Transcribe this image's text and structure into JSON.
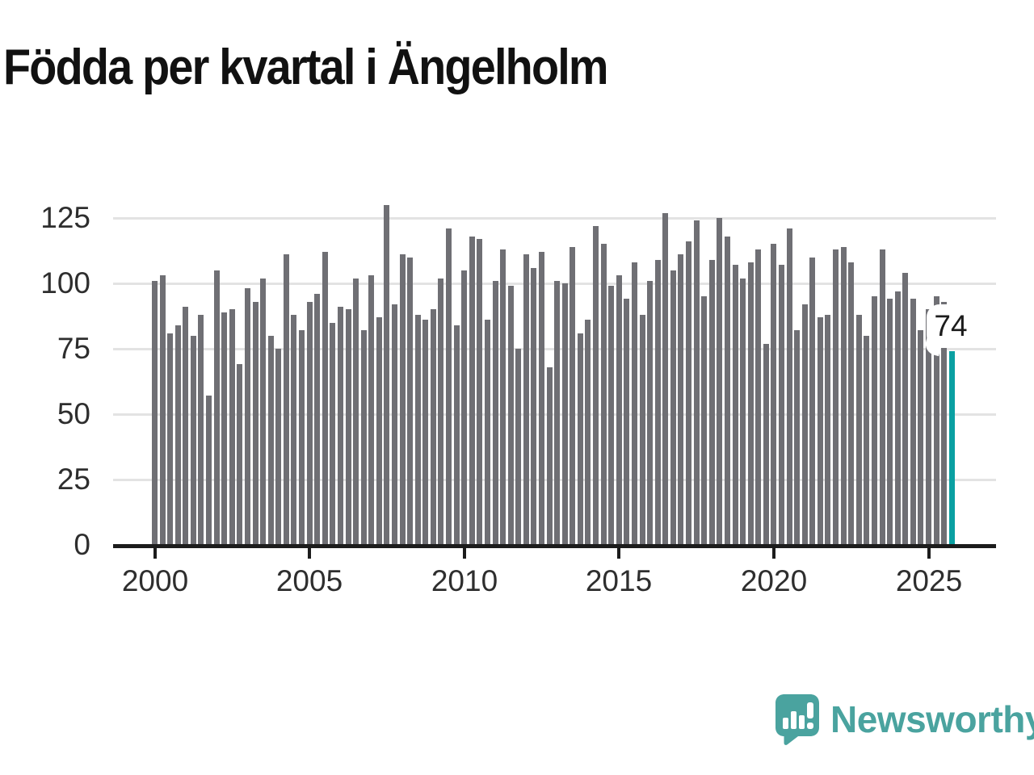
{
  "title": "Födda per kvartal i Ängelholm",
  "annotation": {
    "label": "74"
  },
  "logo": {
    "text": "Newsworthy",
    "icon": "speech-bubble-bar-chart"
  },
  "colors": {
    "bar": "#6f6f74",
    "highlight": "#0aa0a2",
    "grid": "#e3e3e3",
    "axis": "#1c1c1c",
    "tick_label": "#2e2e2e",
    "logo": "#4aa39f",
    "background": "#ffffff",
    "annotation_bg": "#ffffff",
    "annotation_text": "#1c1c1c"
  },
  "chart_data": {
    "type": "bar",
    "title": "Födda per kvartal i Ängelholm",
    "x": {
      "start": "2000-Q1",
      "end": "2025-Q4",
      "freq": "quarterly"
    },
    "x_tick_labels": [
      "2000",
      "2005",
      "2010",
      "2015",
      "2020",
      "2025"
    ],
    "y_ticks": [
      0,
      25,
      50,
      75,
      100,
      125
    ],
    "ylim": [
      0,
      135
    ],
    "grid": "horizontal",
    "legend": "none",
    "highlight_last": true,
    "highlight_label": "74",
    "series": [
      {
        "name": "Födda per kvartal",
        "values": [
          101,
          103,
          81,
          84,
          91,
          80,
          88,
          57,
          105,
          89,
          90,
          69,
          98,
          93,
          102,
          80,
          75,
          111,
          88,
          82,
          93,
          96,
          112,
          85,
          91,
          90,
          102,
          82,
          103,
          87,
          130,
          92,
          111,
          110,
          88,
          86,
          90,
          102,
          121,
          84,
          105,
          118,
          117,
          86,
          101,
          113,
          99,
          75,
          111,
          106,
          112,
          68,
          101,
          100,
          114,
          81,
          86,
          122,
          115,
          99,
          103,
          94,
          108,
          88,
          101,
          109,
          127,
          105,
          111,
          116,
          124,
          95,
          109,
          125,
          118,
          107,
          102,
          108,
          113,
          77,
          115,
          107,
          121,
          82,
          92,
          110,
          87,
          88,
          113,
          114,
          108,
          88,
          80,
          95,
          113,
          94,
          97,
          104,
          94,
          82,
          90,
          95,
          93,
          74
        ]
      }
    ]
  }
}
